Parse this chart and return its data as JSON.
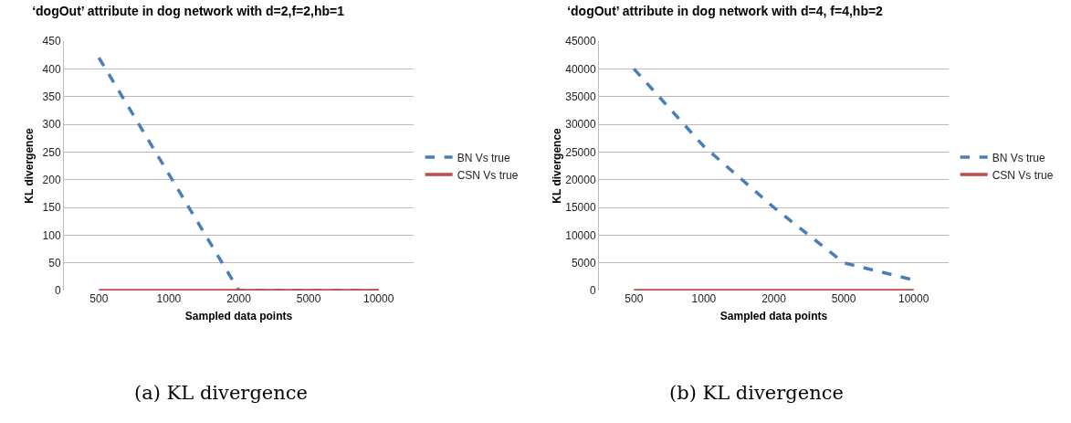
{
  "chart_data": [
    {
      "type": "line",
      "title": "‘dogOut’ attribute in dog network with d=2,f=2,hb=1",
      "xlabel": "Sampled data points",
      "ylabel": "KL divergence",
      "annotations": [
        "(a) KL divergence"
      ],
      "categories": [
        "500",
        "1000",
        "2000",
        "5000",
        "10000"
      ],
      "ylim": [
        0,
        450
      ],
      "yticks": [
        0,
        50,
        100,
        150,
        200,
        250,
        300,
        350,
        400,
        450
      ],
      "grid": "y",
      "legend": "right",
      "marker": "none",
      "series": [
        {
          "name": "BN Vs true",
          "color": "#4a7ebb",
          "line_style": "dashed",
          "values": [
            420,
            210,
            0,
            0,
            0
          ]
        },
        {
          "name": "CSN Vs true",
          "color": "#be4b48",
          "line_style": "solid",
          "values": [
            0,
            0,
            0,
            0,
            0
          ]
        }
      ]
    },
    {
      "type": "line",
      "title": "‘dogOut’ attribute in dog network with d=4, f=4,hb=2",
      "xlabel": "Sampled data points",
      "ylabel": "KL divergence",
      "annotations": [
        "(b) KL divergence"
      ],
      "categories": [
        "500",
        "1000",
        "2000",
        "5000",
        "10000"
      ],
      "ylim": [
        0,
        45000
      ],
      "yticks": [
        0,
        5000,
        10000,
        15000,
        20000,
        25000,
        30000,
        35000,
        40000,
        45000
      ],
      "grid": "y",
      "legend": "right",
      "marker": "none",
      "series": [
        {
          "name": "BN Vs true",
          "color": "#4a7ebb",
          "line_style": "dashed",
          "values": [
            40000,
            26000,
            15000,
            5000,
            1900
          ]
        },
        {
          "name": "CSN Vs true",
          "color": "#be4b48",
          "line_style": "solid",
          "values": [
            0,
            0,
            0,
            0,
            0
          ]
        }
      ]
    }
  ]
}
